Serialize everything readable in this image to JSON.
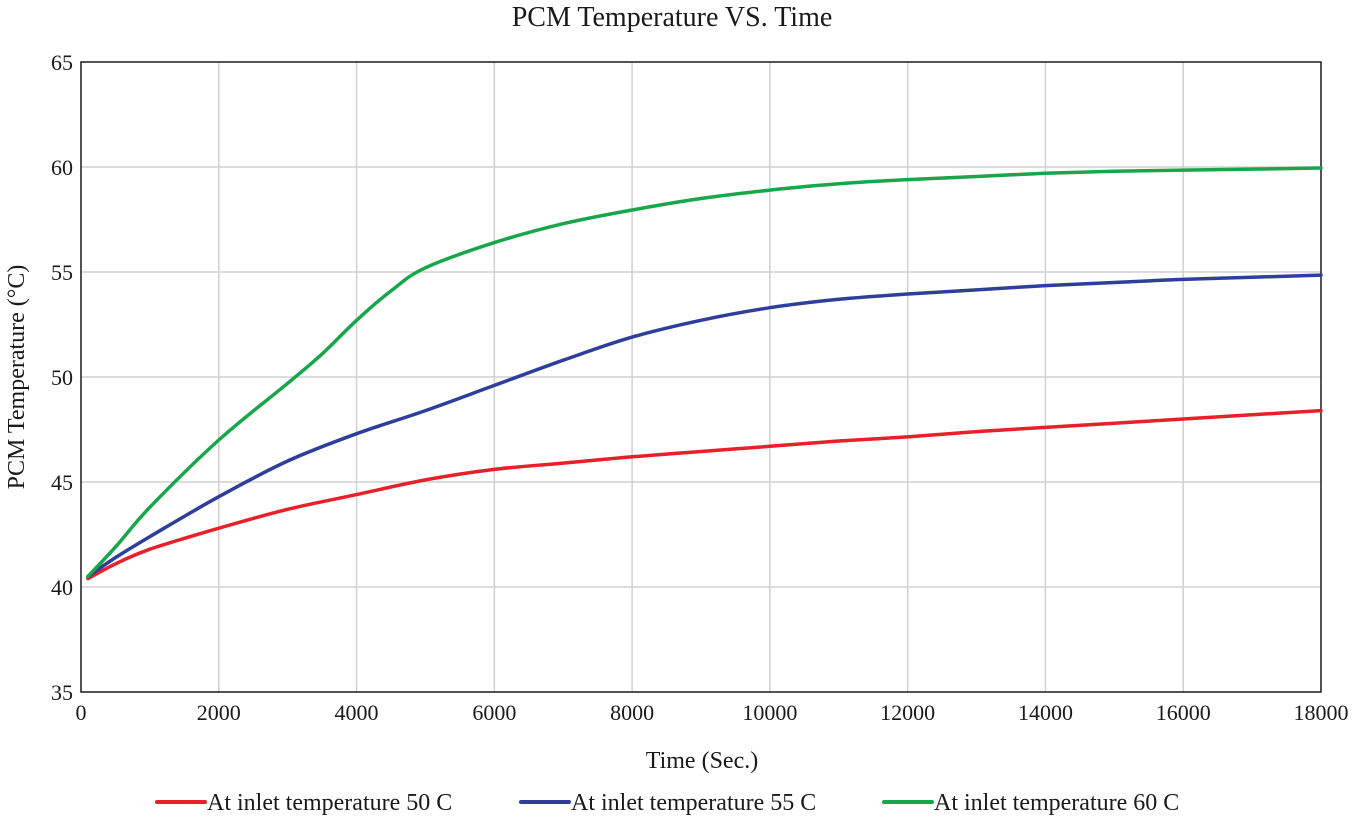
{
  "chart_data": {
    "type": "line",
    "title": "PCM Temperature VS. Time",
    "xlabel": "Time (Sec.)",
    "ylabel": "PCM Temperature (°C)",
    "xlim": [
      0,
      18000
    ],
    "ylim": [
      35,
      65
    ],
    "x_ticks": [
      0,
      2000,
      4000,
      6000,
      8000,
      10000,
      12000,
      14000,
      16000,
      18000
    ],
    "y_ticks": [
      35,
      40,
      45,
      50,
      55,
      60,
      65
    ],
    "grid": true,
    "legend_position": "bottom",
    "series": [
      {
        "name": "At inlet temperature 50 C",
        "color": "#e8202a",
        "x": [
          100,
          500,
          1000,
          2000,
          3000,
          4000,
          5000,
          6000,
          7000,
          8000,
          9000,
          10000,
          11000,
          12000,
          13000,
          14000,
          15000,
          16000,
          17000,
          18000
        ],
        "y": [
          40.4,
          41.1,
          41.8,
          42.8,
          43.7,
          44.4,
          45.1,
          45.6,
          45.9,
          46.2,
          46.45,
          46.7,
          46.95,
          47.15,
          47.4,
          47.6,
          47.8,
          48.0,
          48.2,
          48.4
        ]
      },
      {
        "name": "At inlet temperature 55 C",
        "color": "#2e3f9b",
        "x": [
          100,
          500,
          1000,
          2000,
          3000,
          4000,
          5000,
          6000,
          7000,
          8000,
          9000,
          10000,
          11000,
          12000,
          13000,
          14000,
          15000,
          16000,
          17000,
          18000
        ],
        "y": [
          40.5,
          41.4,
          42.4,
          44.3,
          46.0,
          47.3,
          48.4,
          49.6,
          50.8,
          51.9,
          52.7,
          53.3,
          53.7,
          53.95,
          54.15,
          54.35,
          54.5,
          54.65,
          54.75,
          54.85
        ]
      },
      {
        "name": "At inlet temperature 60 C",
        "color": "#17a64a",
        "x": [
          100,
          500,
          1000,
          2000,
          3000,
          3500,
          4000,
          4500,
          5000,
          6000,
          7000,
          8000,
          9000,
          10000,
          11000,
          12000,
          13000,
          14000,
          15000,
          16000,
          17000,
          18000
        ],
        "y": [
          40.5,
          41.9,
          43.8,
          47.0,
          49.7,
          51.1,
          52.7,
          54.1,
          55.2,
          56.4,
          57.3,
          57.95,
          58.5,
          58.9,
          59.2,
          59.4,
          59.55,
          59.7,
          59.8,
          59.85,
          59.9,
          59.95
        ]
      }
    ]
  }
}
